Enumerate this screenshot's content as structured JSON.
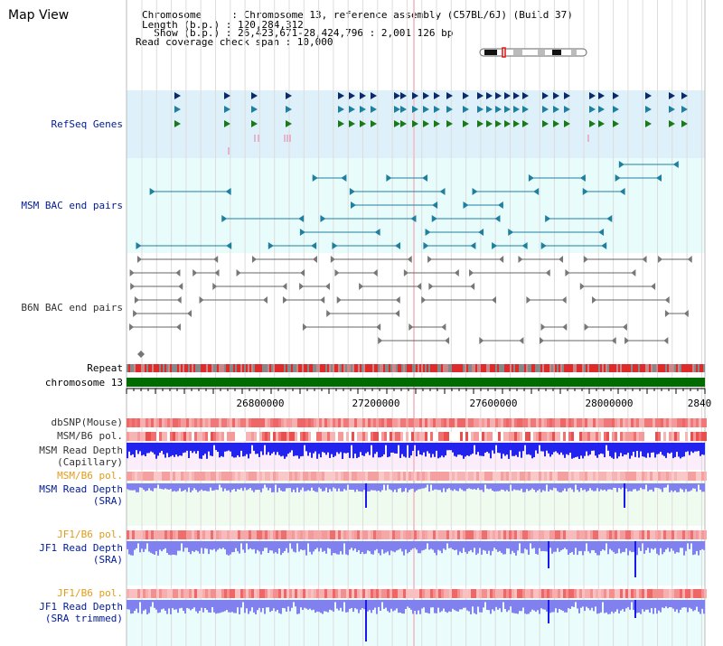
{
  "view_title": "Map View",
  "info": {
    "chromosome_line": "Chromosome     : Chromosome 13, reference assembly (C57BL/6J) (Build 37)",
    "length_line": "Length (b.p.) : 120,284,312",
    "show_line": "  Show (b.p.) : 26,423,671-28,424,796 : 2,001,126 bp",
    "coverage_line": "Read coverage check span : 10,000"
  },
  "tracks": {
    "refseq": "RefSeq Genes",
    "msm_bac": "MSM BAC end pairs",
    "b6n_bac": "B6N BAC end pairs",
    "repeat": "Repeat",
    "chromosome": "chromosome 13",
    "dbsnp": "dbSNP(Mouse)",
    "msm_b6_pol_1": "MSM/B6 pol.",
    "msm_depth_cap_1": "MSM Read Depth",
    "msm_depth_cap_2": "(Capillary)",
    "msm_b6_pol_2": "MSM/B6 pol.",
    "msm_depth_sra_1": "MSM Read Depth",
    "msm_depth_sra_2": "(SRA)",
    "jf1_b6_pol_1": "JF1/B6 pol.",
    "jf1_depth_sra_1": "JF1 Read Depth",
    "jf1_depth_sra_2": "(SRA)",
    "jf1_b6_pol_2": "JF1/B6 pol.",
    "jf1_depth_trim_1": "JF1 Read Depth",
    "jf1_depth_trim_2": "(SRA trimmed)"
  },
  "axis_ticks": [
    "26800000",
    "27200000",
    "27600000",
    "28000000",
    "2840"
  ],
  "colors": {
    "refseq_bg": "#def0fa",
    "msm_bac_bg": "#e8fcfc",
    "b6n_bac_bg": "#ffffff",
    "chromosome_bar": "#006b00",
    "repeat_red": "#dd2a2a",
    "repeat_gray": "#888888",
    "depth_blue": "#1a1aee",
    "depth_light": "#8080ee",
    "snp_pink": "#f07070",
    "gene_green": "#1a7a1a",
    "gene_teal": "#1f7f9f",
    "gene_navy": "#0a2a6a"
  }
}
